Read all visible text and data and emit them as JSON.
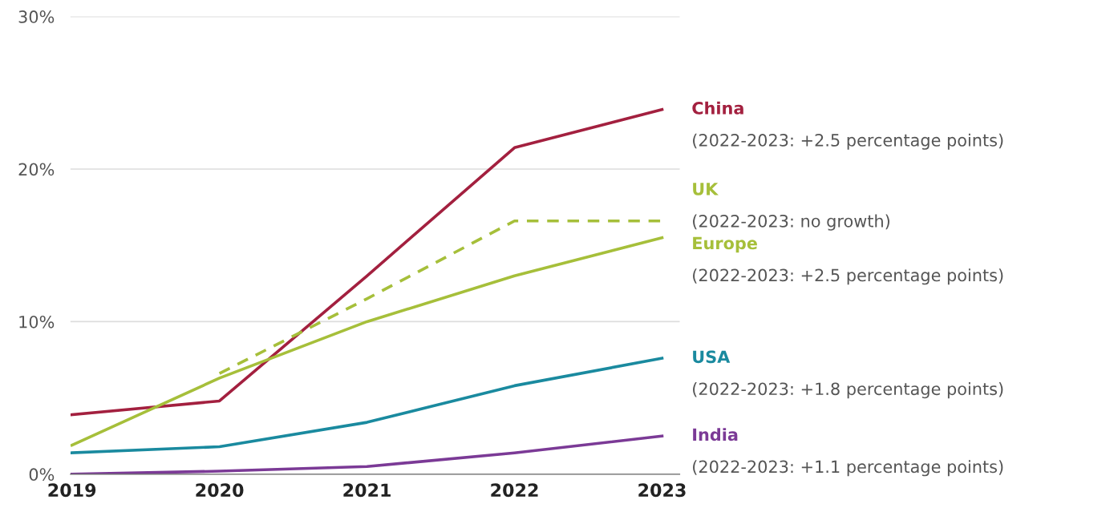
{
  "chart_data": {
    "type": "line",
    "categories": [
      "2019",
      "2020",
      "2021",
      "2022",
      "2023"
    ],
    "series": [
      {
        "name": "China",
        "color": "#a3203f",
        "values": [
          3.9,
          4.8,
          13.0,
          21.4,
          23.9
        ]
      },
      {
        "name": "UK",
        "color": "#a6bf3a",
        "values": [
          null,
          6.6,
          11.5,
          16.6,
          16.6
        ],
        "line_style": "dashed"
      },
      {
        "name": "Europe",
        "color": "#a6bf3a",
        "values": [
          1.9,
          6.3,
          10.0,
          13.0,
          15.5
        ]
      },
      {
        "name": "USA",
        "color": "#1a8a9f",
        "values": [
          1.4,
          1.8,
          3.4,
          5.8,
          7.6
        ]
      },
      {
        "name": "India",
        "color": "#7b3a96",
        "values": [
          0.0,
          0.2,
          0.5,
          1.4,
          2.5
        ]
      }
    ],
    "annotations": [
      "(2022-2023: +2.5 percentage points)",
      "(2022-2023: no growth)",
      "(2022-2023: +2.5 percentage points)",
      "(2022-2023: +1.8 percentage points)",
      "(2022-2023: +1.1 percentage points)"
    ],
    "ylim": [
      0,
      30
    ],
    "yticks": [
      {
        "value": 0,
        "label": "0%"
      },
      {
        "value": 10,
        "label": "10%"
      },
      {
        "value": 20,
        "label": "20%"
      },
      {
        "value": 30,
        "label": "30%"
      }
    ],
    "grid": "y",
    "legend": false,
    "line_style": "solid",
    "marker": "none"
  }
}
